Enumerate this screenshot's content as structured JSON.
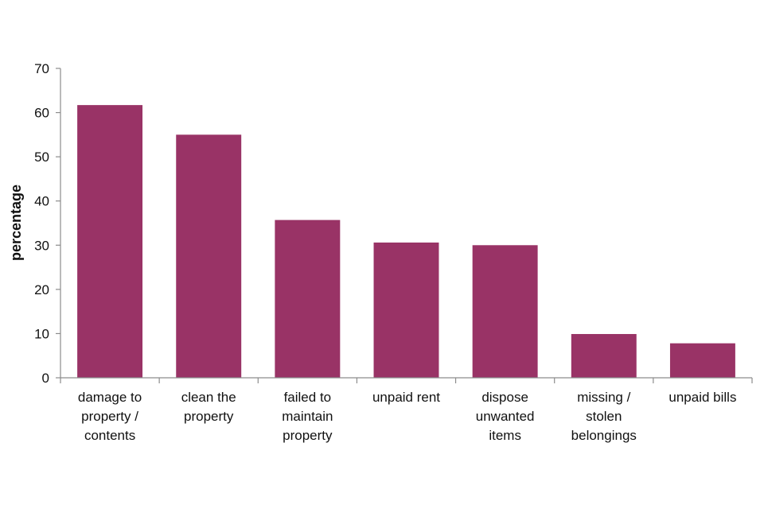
{
  "chart_data": {
    "type": "bar",
    "title": "",
    "xlabel": "",
    "ylabel": "percentage",
    "ylim": [
      0,
      70
    ],
    "yticks": [
      0,
      10,
      20,
      30,
      40,
      50,
      60,
      70
    ],
    "grid": false,
    "legend": "none",
    "bar_color": "#993366",
    "categories": [
      [
        "damage to",
        "property /",
        "contents"
      ],
      [
        "clean the",
        "property"
      ],
      [
        "failed to",
        "maintain",
        "property"
      ],
      [
        "unpaid rent"
      ],
      [
        "dispose",
        "unwanted",
        "items"
      ],
      [
        "missing /",
        "stolen",
        "belongings"
      ],
      [
        "unpaid bills"
      ]
    ],
    "values": [
      61.7,
      55.0,
      35.7,
      30.6,
      30.0,
      9.9,
      7.8
    ]
  }
}
